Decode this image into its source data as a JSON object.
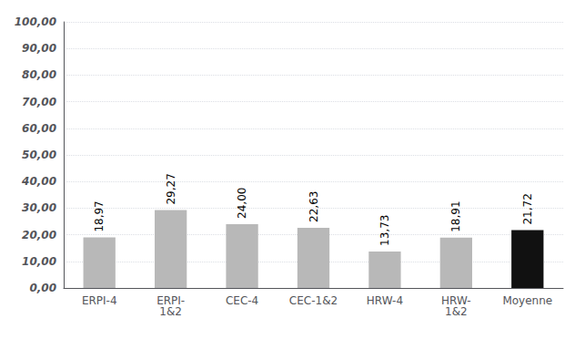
{
  "chart_data": {
    "type": "bar",
    "categories": [
      "ERPI-4",
      "ERPI-\n1&2",
      "CEC-4",
      "CEC-1&2",
      "HRW-4",
      "HRW-\n1&2",
      "Moyenne"
    ],
    "values": [
      18.97,
      29.27,
      24.0,
      22.63,
      13.73,
      18.91,
      21.72
    ],
    "value_labels": [
      "18,97",
      "29,27",
      "24,00",
      "22,63",
      "13,73",
      "18,91",
      "21,72"
    ],
    "data_labels": true,
    "colors": [
      "#b8b8b8",
      "#b8b8b8",
      "#b8b8b8",
      "#b8b8b8",
      "#b8b8b8",
      "#b8b8b8",
      "#111111"
    ],
    "ylim": [
      0,
      100
    ],
    "yticks": [
      {
        "value": 0,
        "label": "0,00"
      },
      {
        "value": 10,
        "label": "10,00"
      },
      {
        "value": 20,
        "label": "20,00"
      },
      {
        "value": 30,
        "label": "30,00"
      },
      {
        "value": 40,
        "label": "40,00"
      },
      {
        "value": 50,
        "label": "50,00"
      },
      {
        "value": 60,
        "label": "60,00"
      },
      {
        "value": 70,
        "label": "70,00"
      },
      {
        "value": 80,
        "label": "80,00"
      },
      {
        "value": 90,
        "label": "90,00"
      },
      {
        "value": 100,
        "label": "100,00"
      }
    ],
    "grid": true
  }
}
